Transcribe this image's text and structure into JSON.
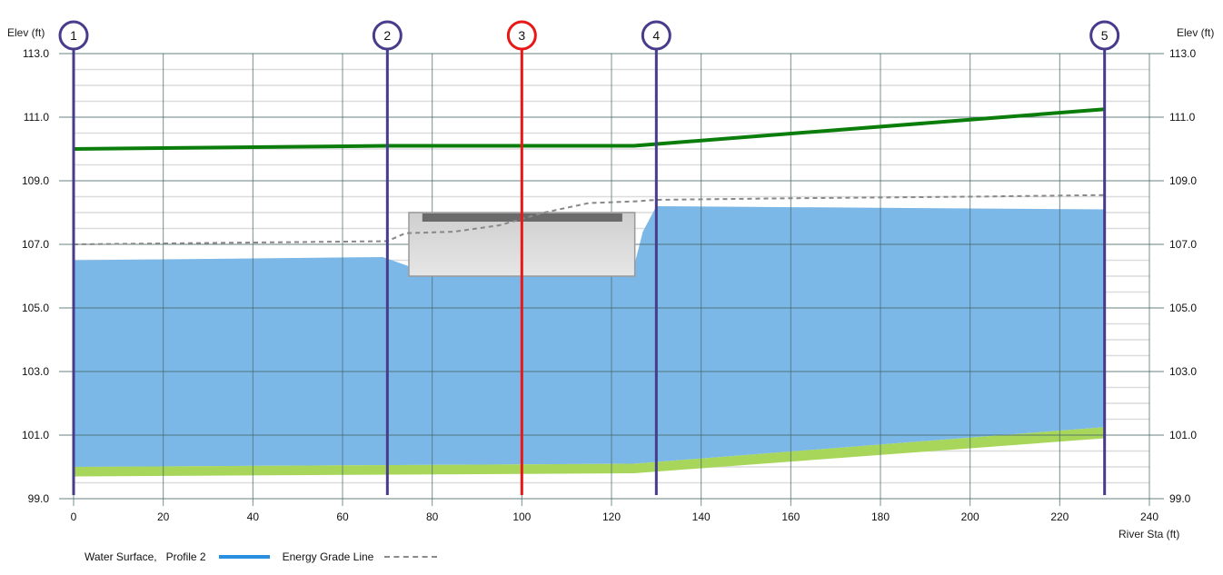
{
  "chart_data": {
    "type": "area",
    "title": "",
    "xlabel": "River Sta (ft)",
    "ylabel_left": "Elev (ft)",
    "ylabel_right": "Elev (ft)",
    "xlim": [
      0,
      240
    ],
    "ylim": [
      99.0,
      113.0
    ],
    "x_ticks": [
      "0",
      "20",
      "40",
      "60",
      "80",
      "100",
      "120",
      "140",
      "160",
      "180",
      "200",
      "220",
      "240"
    ],
    "y_ticks": [
      "113.0",
      "111.0",
      "109.0",
      "107.0",
      "105.0",
      "103.0",
      "101.0",
      "99.0"
    ],
    "grid": true,
    "legend_position": "bottom-left",
    "series": [
      {
        "name": "Water Surface, Profile 2",
        "type": "area",
        "color": "#7bb8e8",
        "x": [
          0,
          69,
          75,
          125,
          127,
          130,
          230
        ],
        "values": [
          106.5,
          106.6,
          106.3,
          106.3,
          107.4,
          108.2,
          108.1
        ]
      },
      {
        "name": "Energy Grade Line",
        "type": "line",
        "style": "dashed",
        "color": "#888888",
        "x": [
          0,
          70,
          74,
          85,
          95,
          105,
          115,
          125,
          130,
          160,
          200,
          230
        ],
        "values": [
          107.0,
          107.1,
          107.35,
          107.4,
          107.6,
          108.0,
          108.3,
          108.35,
          108.4,
          108.45,
          108.5,
          108.55
        ]
      },
      {
        "name": "Green line (upper)",
        "type": "line",
        "color": "#0a7d0a",
        "x": [
          0,
          70,
          125,
          230
        ],
        "values": [
          110.0,
          110.1,
          110.1,
          111.25
        ]
      },
      {
        "name": "Channel bed (ground)",
        "type": "area",
        "color": "#a8d65a",
        "x": [
          0,
          125,
          230
        ],
        "top": [
          100.0,
          100.1,
          101.25
        ],
        "bottom": [
          99.7,
          99.8,
          100.9
        ]
      }
    ],
    "structure": {
      "name": "Culvert/Bridge deck",
      "x_range": [
        75,
        125
      ],
      "elev_range": [
        106.0,
        108.0
      ],
      "deck_x_range": [
        78,
        122
      ],
      "deck_elev": [
        107.8,
        108.0
      ]
    },
    "cross_sections": [
      {
        "label": "1",
        "station": 0,
        "color": "#473c8b"
      },
      {
        "label": "2",
        "station": 70,
        "color": "#473c8b"
      },
      {
        "label": "3",
        "station": 100,
        "color": "#e81818",
        "selected": true
      },
      {
        "label": "4",
        "station": 130,
        "color": "#473c8b"
      },
      {
        "label": "5",
        "station": 230,
        "color": "#473c8b"
      }
    ]
  },
  "axis": {
    "left_title": "Elev (ft)",
    "right_title": "Elev (ft)",
    "x_title": "River Sta (ft)"
  },
  "legend": {
    "water_surface": "Water Surface,   Profile 2",
    "egl": "Energy Grade Line"
  },
  "colors": {
    "water": "#7bb8e8",
    "water_legend": "#2b8fe0",
    "ground": "#a8d65a",
    "green_line": "#0a7d0a",
    "xs_marker": "#473c8b",
    "xs_selected": "#e81818",
    "major_grid": "#4a6b6b",
    "minor_grid": "#dcdcdc"
  }
}
